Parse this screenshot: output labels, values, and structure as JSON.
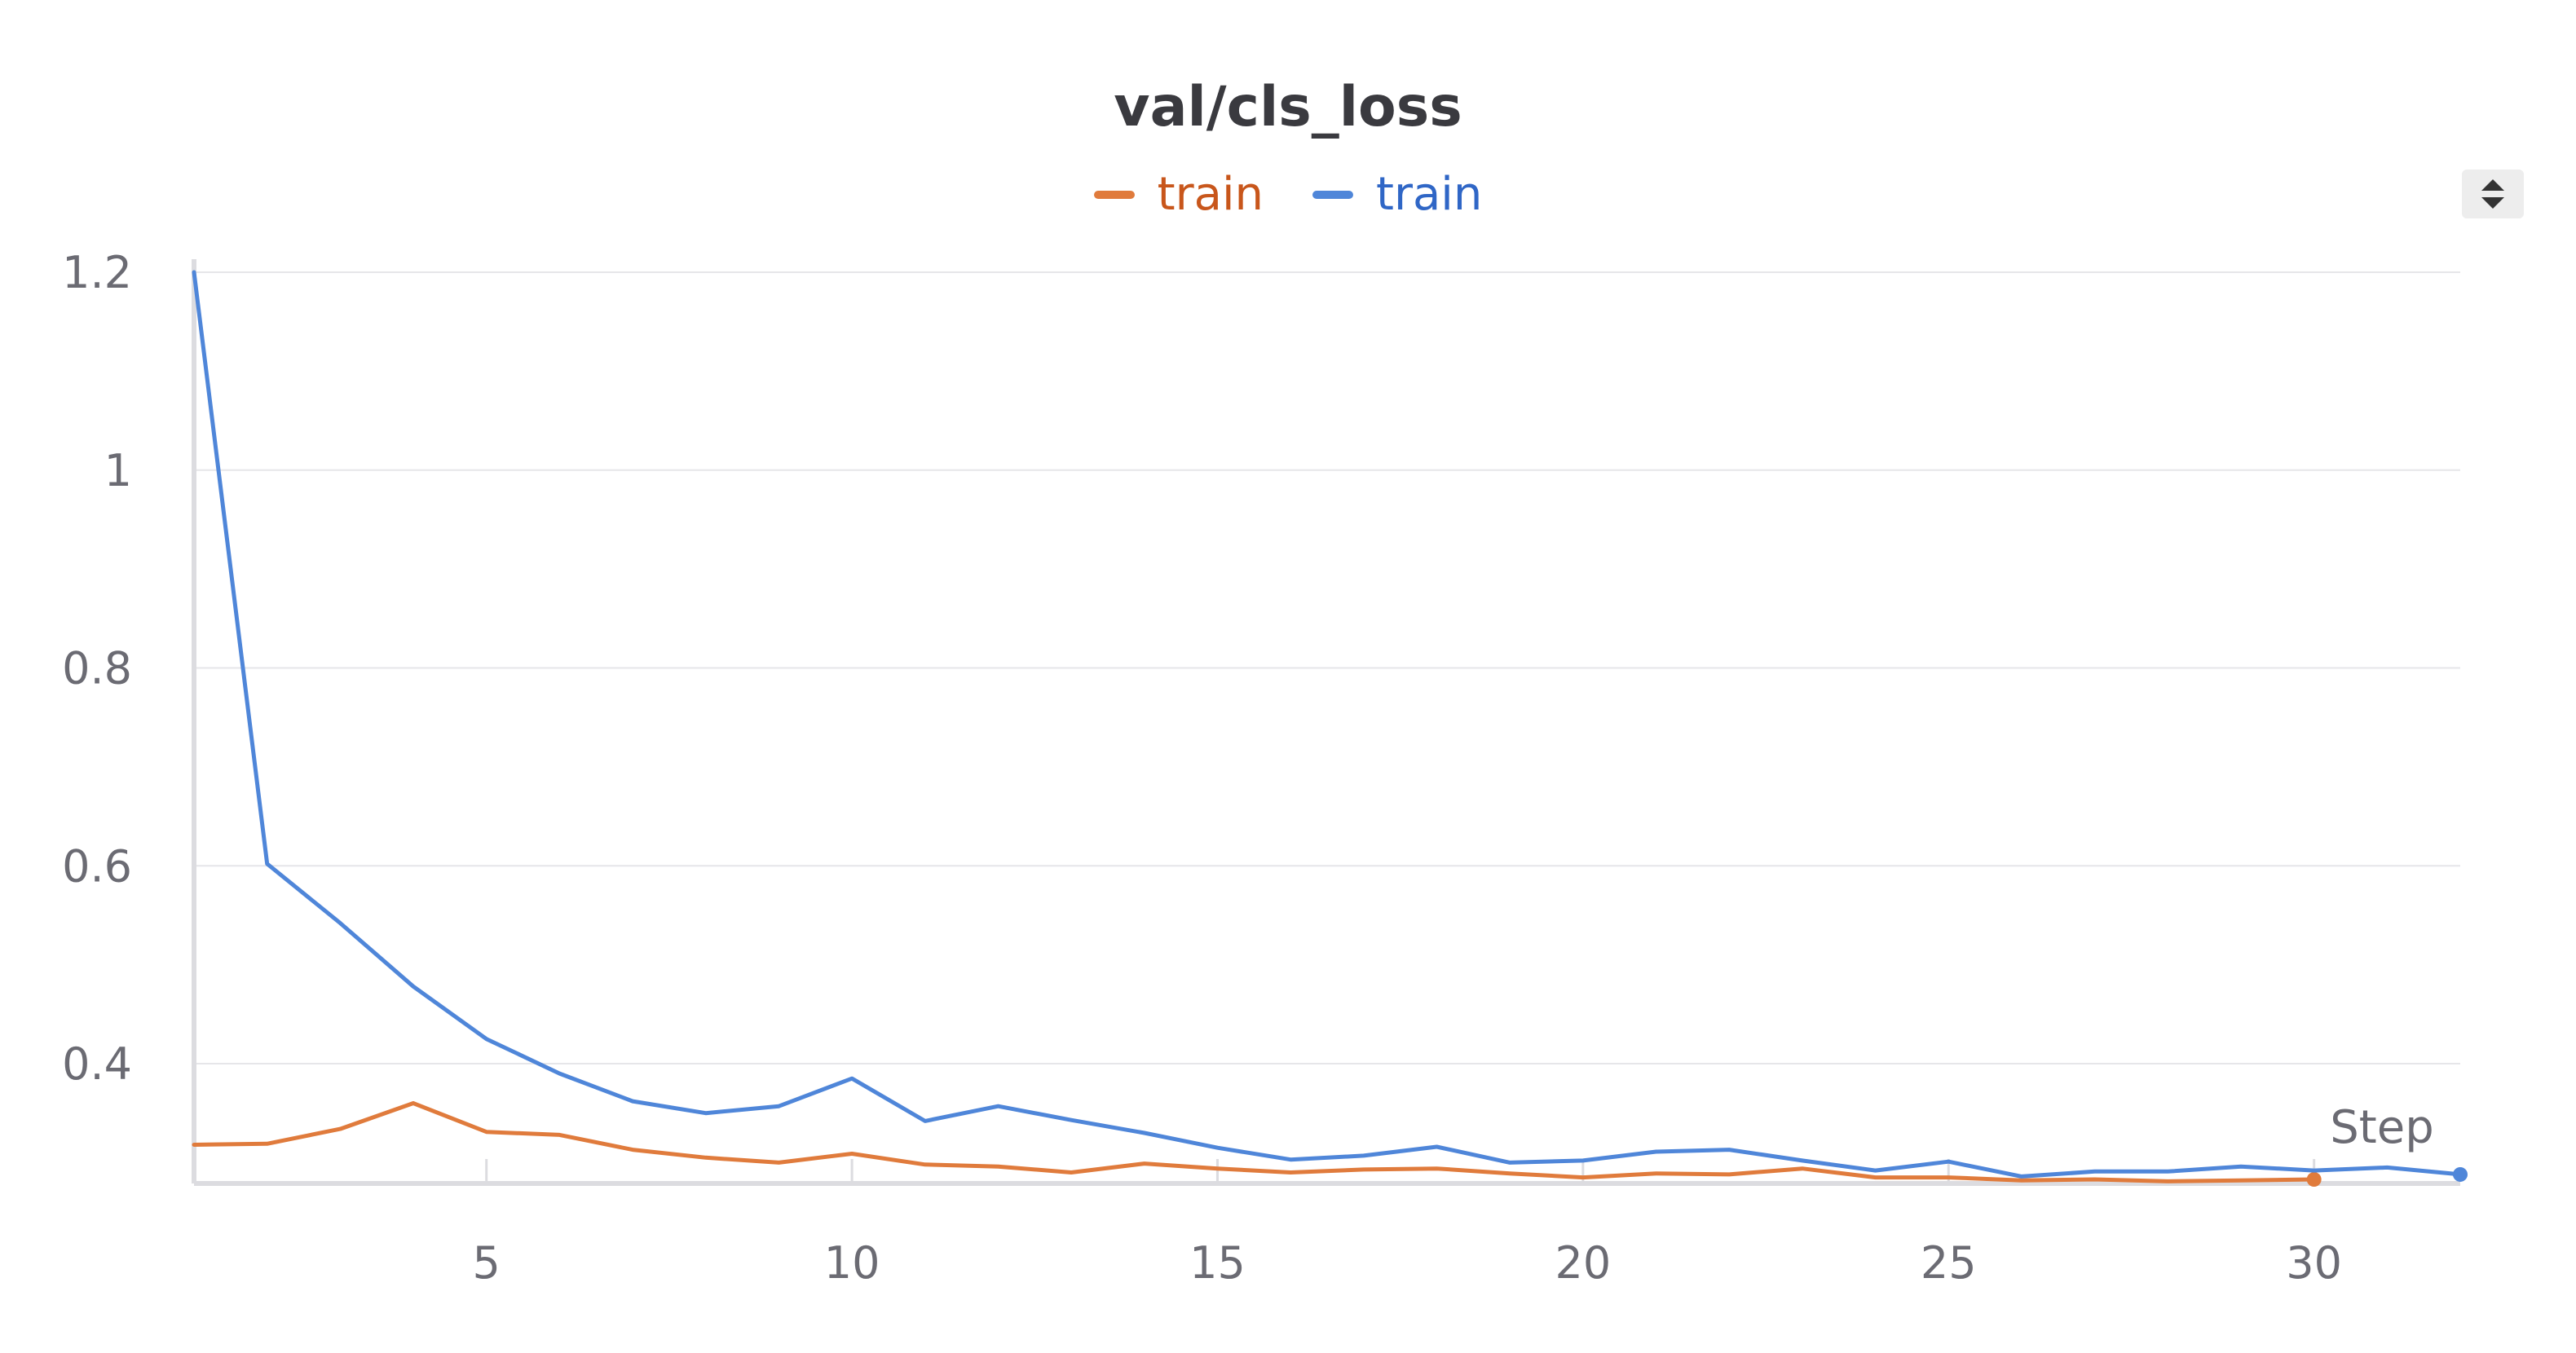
{
  "chart_data": {
    "type": "line",
    "title": "val/cls_loss",
    "xlabel": "Step",
    "ylabel": "",
    "xlim": [
      1,
      32
    ],
    "ylim": [
      0.28,
      1.2
    ],
    "x_ticks": [
      5,
      10,
      15,
      20,
      25,
      30
    ],
    "y_ticks": [
      0.4,
      0.6,
      0.8,
      1,
      1.2
    ],
    "y_tick_labels": [
      "0.4",
      "0.6",
      "0.8",
      "1",
      "1.2"
    ],
    "x_tick_labels": [
      "5",
      "10",
      "15",
      "20",
      "25",
      "30"
    ],
    "grid": true,
    "legend_position": "top-center",
    "series": [
      {
        "name": "train",
        "color": "#e07b3c",
        "x": [
          1,
          2,
          3,
          4,
          5,
          6,
          7,
          8,
          9,
          10,
          11,
          12,
          13,
          14,
          15,
          16,
          17,
          18,
          19,
          20,
          21,
          22,
          23,
          24,
          25,
          26,
          27,
          28,
          29,
          30
        ],
        "y": [
          0.318,
          0.319,
          0.334,
          0.36,
          0.331,
          0.328,
          0.313,
          0.305,
          0.3,
          0.309,
          0.298,
          0.296,
          0.29,
          0.299,
          0.294,
          0.29,
          0.293,
          0.294,
          0.289,
          0.285,
          0.289,
          0.288,
          0.294,
          0.285,
          0.285,
          0.282,
          0.283,
          0.281,
          0.282,
          0.283
        ]
      },
      {
        "name": "train",
        "color": "#4f86d9",
        "x": [
          1,
          2,
          3,
          4,
          5,
          6,
          7,
          8,
          9,
          10,
          11,
          12,
          13,
          14,
          15,
          16,
          17,
          18,
          19,
          20,
          21,
          22,
          23,
          24,
          25,
          26,
          27,
          28,
          29,
          30,
          31,
          32
        ],
        "y": [
          1.2,
          0.602,
          0.542,
          0.478,
          0.425,
          0.39,
          0.362,
          0.35,
          0.357,
          0.385,
          0.342,
          0.357,
          0.343,
          0.33,
          0.315,
          0.303,
          0.307,
          0.316,
          0.3,
          0.302,
          0.311,
          0.313,
          0.302,
          0.292,
          0.301,
          0.286,
          0.291,
          0.291,
          0.296,
          0.292,
          0.295,
          0.288
        ]
      }
    ]
  }
}
